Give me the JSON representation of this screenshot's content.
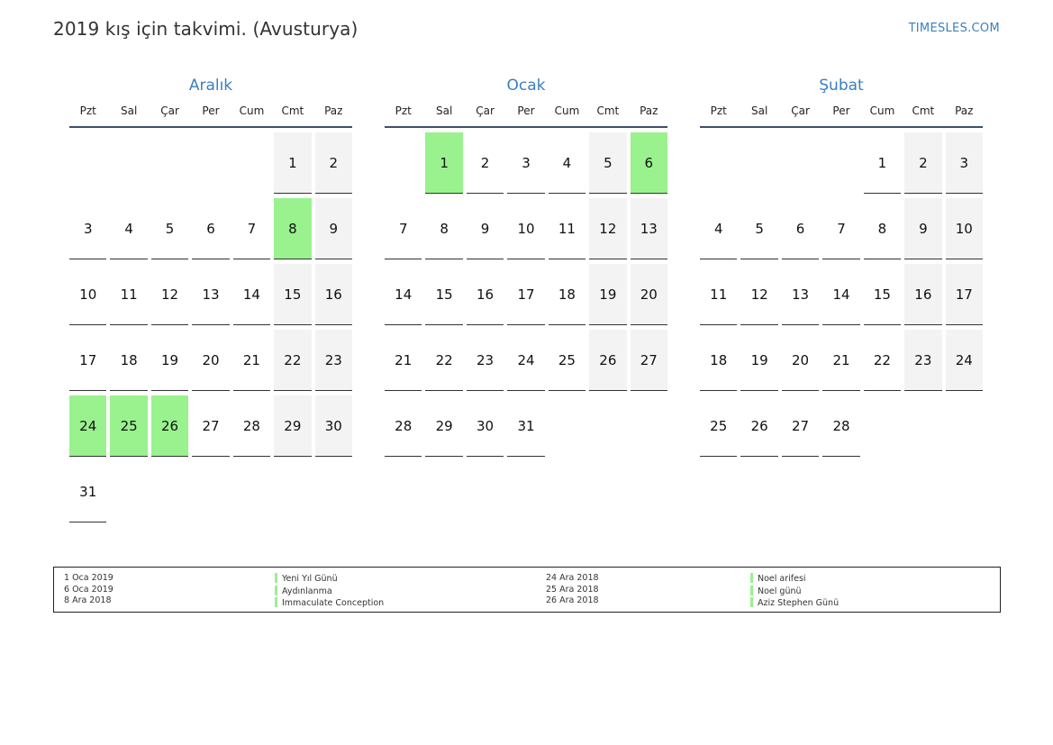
{
  "title": "2019 kış için takvimi. (Avusturya)",
  "site": "TIMESLES.COM",
  "weekdays": [
    "Pzt",
    "Sal",
    "Çar",
    "Per",
    "Cum",
    "Cmt",
    "Paz"
  ],
  "colors": {
    "accent": "#3a7fc0",
    "holiday": "#99f28e",
    "weekend": "#f3f3f3",
    "rule": "#3d4f6c"
  },
  "months": [
    {
      "name": "Aralık",
      "start_weekday": 6,
      "days": 31,
      "holidays": [
        8,
        24,
        25,
        26
      ]
    },
    {
      "name": "Ocak",
      "start_weekday": 2,
      "days": 31,
      "holidays": [
        1,
        6
      ]
    },
    {
      "name": "Şubat",
      "start_weekday": 5,
      "days": 28,
      "holidays": []
    }
  ],
  "legend": {
    "left": [
      {
        "date": "1 Oca 2019",
        "name": "Yeni Yıl Günü"
      },
      {
        "date": "6 Oca 2019",
        "name": "Aydınlanma"
      },
      {
        "date": "8 Ara 2018",
        "name": "Immaculate Conception"
      }
    ],
    "right": [
      {
        "date": "24 Ara 2018",
        "name": "Noel arifesi"
      },
      {
        "date": "25 Ara 2018",
        "name": "Noel günü"
      },
      {
        "date": "26 Ara 2018",
        "name": "Aziz Stephen Günü"
      }
    ]
  }
}
